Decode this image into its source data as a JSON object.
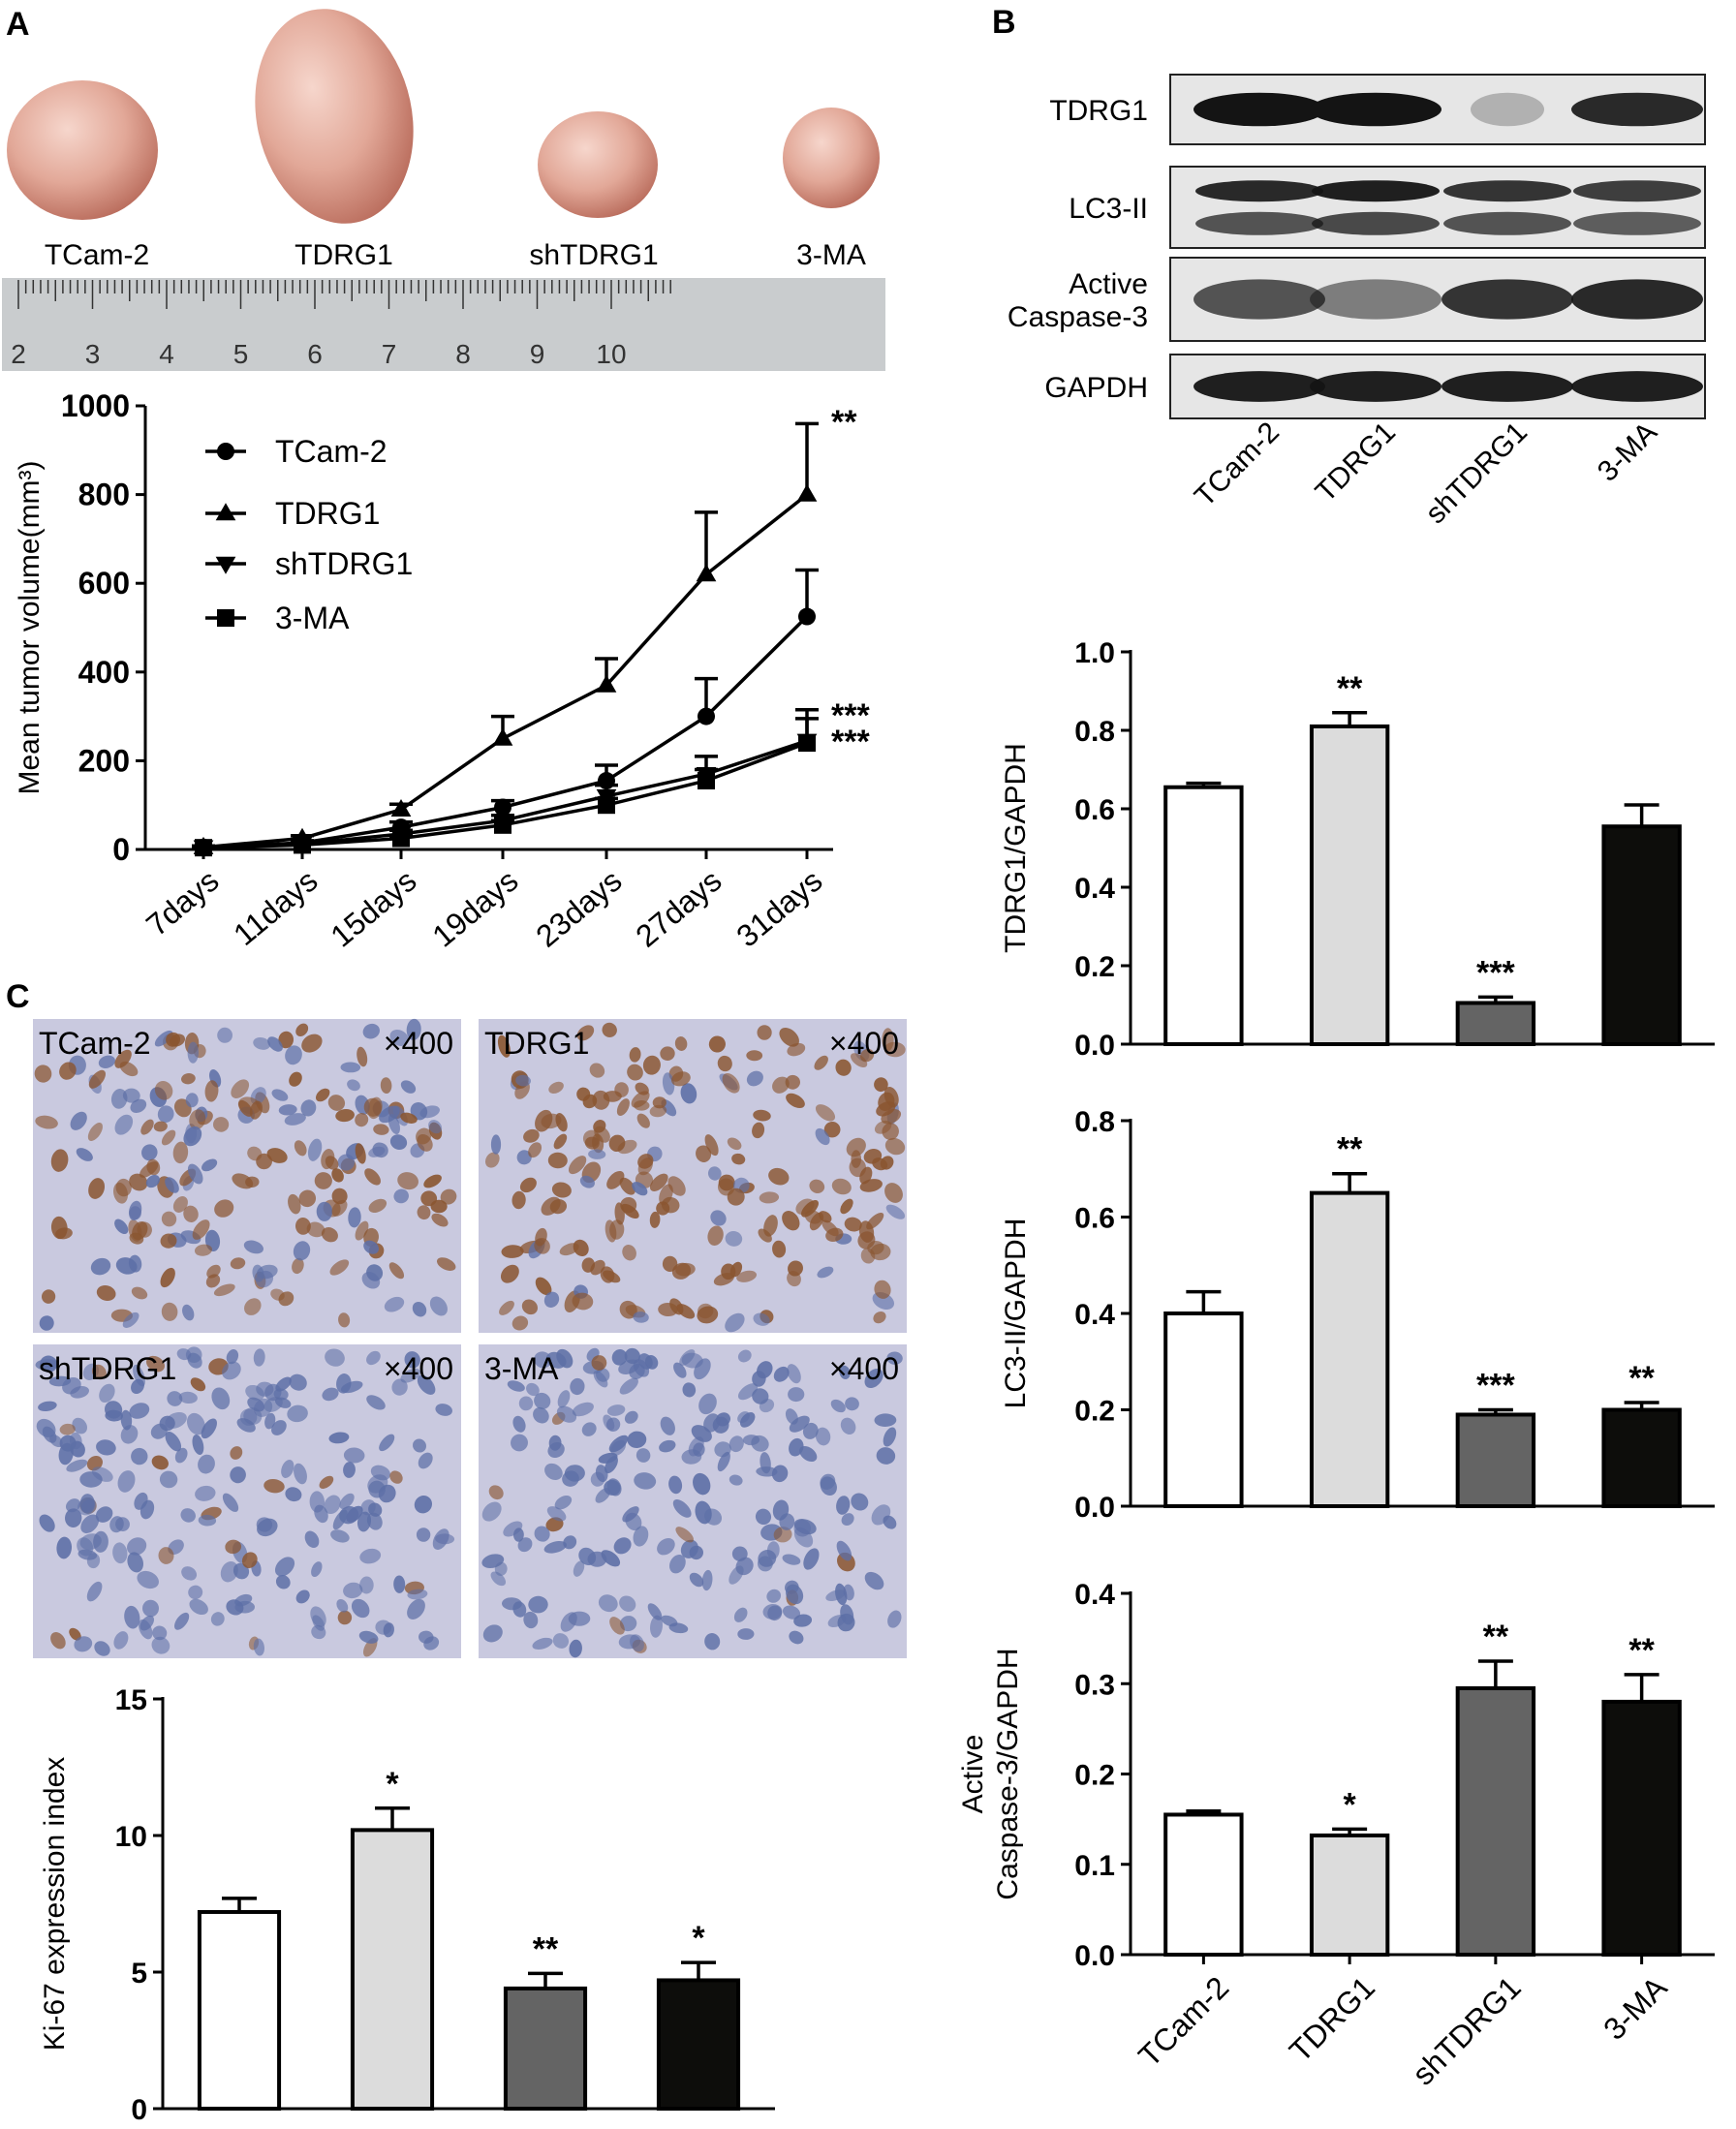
{
  "colors": {
    "tcam2": "#ffffff",
    "tdrg1": "#dcdcdc",
    "shtdrg1": "#646464",
    "ma": "#0d0d0b",
    "ink": "#000000",
    "tumor": "#e3a89c",
    "ruler": "#c9ccce",
    "stain_bg": "#c9c9df",
    "stain_brown": "#8a5530",
    "stain_blue": "#5d6fa6",
    "blot_band": "#141414",
    "blot_bg": "#e6e6e6"
  },
  "panels": {
    "a": "A",
    "b": "B",
    "c": "C"
  },
  "photo": {
    "labels": [
      "TCam-2",
      "TDRG1",
      "shTDRG1",
      "3-MA"
    ],
    "ruler_numbers": [
      "2",
      "3",
      "4",
      "5",
      "6",
      "7",
      "8",
      "9",
      "10"
    ]
  },
  "blot": {
    "row_labels": [
      {
        "key": "tdrg1",
        "lines": [
          "TDRG1"
        ]
      },
      {
        "key": "lc3",
        "lines": [
          "LC3-II"
        ]
      },
      {
        "key": "casp",
        "lines": [
          "Active",
          "Caspase-3"
        ]
      },
      {
        "key": "gapdh",
        "lines": [
          "GAPDH"
        ]
      }
    ],
    "lane_labels": [
      "TCam-2",
      "TDRG1",
      "shTDRG1",
      "3-MA"
    ]
  },
  "histology": {
    "labels": [
      "TCam-2",
      "TDRG1",
      "shTDRG1",
      "3-MA"
    ],
    "magnification": "×400"
  },
  "chart_data": [
    {
      "id": "tumor-volume",
      "type": "line",
      "ylabel": "Mean tumor volume(mm³)",
      "ylim": [
        0,
        1000
      ],
      "yticks": [
        0,
        200,
        400,
        600,
        800,
        1000
      ],
      "categories": [
        "7days",
        "11days",
        "15days",
        "19days",
        "23days",
        "27days",
        "31days"
      ],
      "legend": "top-left",
      "series": [
        {
          "name": "TCam-2",
          "marker": "circle",
          "values": [
            5,
            15,
            50,
            95,
            155,
            300,
            525
          ],
          "errors": [
            3,
            5,
            12,
            15,
            35,
            85,
            105
          ]
        },
        {
          "name": "TDRG1",
          "marker": "triangle-up",
          "values": [
            5,
            25,
            90,
            250,
            370,
            620,
            800
          ],
          "errors": [
            3,
            6,
            12,
            50,
            60,
            140,
            160
          ]
        },
        {
          "name": "shTDRG1",
          "marker": "triangle-down",
          "values": [
            5,
            12,
            35,
            65,
            120,
            170,
            245
          ],
          "errors": [
            2,
            4,
            8,
            12,
            25,
            40,
            70
          ]
        },
        {
          "name": "3-MA",
          "marker": "square",
          "values": [
            4,
            10,
            25,
            55,
            100,
            155,
            240
          ],
          "errors": [
            2,
            3,
            6,
            10,
            15,
            25,
            55
          ]
        }
      ],
      "annotations": [
        "**",
        "***",
        "***"
      ]
    },
    {
      "id": "tdrg1-gapdh",
      "type": "bar",
      "ylabel": "TDRG1/GAPDH",
      "ylim": [
        0,
        1.0
      ],
      "yticks": [
        "0.0",
        "0.2",
        "0.4",
        "0.6",
        "0.8",
        "1.0"
      ],
      "categories": [
        "TCam-2",
        "TDRG1",
        "shTDRG1",
        "3-MA"
      ],
      "values": [
        0.655,
        0.81,
        0.105,
        0.555
      ],
      "errors": [
        0.01,
        0.035,
        0.015,
        0.055
      ],
      "significance": [
        "",
        "**",
        "***",
        ""
      ]
    },
    {
      "id": "lc3-gapdh",
      "type": "bar",
      "ylabel": "LC3-II/GAPDH",
      "ylim": [
        0,
        0.8
      ],
      "yticks": [
        "0.0",
        "0.2",
        "0.4",
        "0.6",
        "0.8"
      ],
      "categories": [
        "TCam-2",
        "TDRG1",
        "shTDRG1",
        "3-MA"
      ],
      "values": [
        0.4,
        0.65,
        0.19,
        0.2
      ],
      "errors": [
        0.045,
        0.04,
        0.01,
        0.015
      ],
      "significance": [
        "",
        "**",
        "***",
        "**"
      ]
    },
    {
      "id": "casp-gapdh",
      "type": "bar",
      "ylabel": [
        "Active",
        "Caspase-3/GAPDH"
      ],
      "ylim": [
        0,
        0.4
      ],
      "yticks": [
        "0.0",
        "0.1",
        "0.2",
        "0.3",
        "0.4"
      ],
      "categories": [
        "TCam-2",
        "TDRG1",
        "shTDRG1",
        "3-MA"
      ],
      "values": [
        0.155,
        0.132,
        0.295,
        0.28
      ],
      "errors": [
        0.004,
        0.007,
        0.03,
        0.03
      ],
      "significance": [
        "",
        "*",
        "**",
        "**"
      ]
    },
    {
      "id": "ki67",
      "type": "bar",
      "ylabel": "Ki-67 expression index",
      "ylim": [
        0,
        15
      ],
      "yticks": [
        "0",
        "5",
        "10",
        "15"
      ],
      "categories": [
        "TCam-2",
        "TDRG1",
        "shTDRG1",
        "3-MA"
      ],
      "values": [
        7.2,
        10.2,
        4.4,
        4.7
      ],
      "errors": [
        0.5,
        0.8,
        0.55,
        0.65
      ],
      "significance": [
        "",
        "*",
        "**",
        "*"
      ]
    }
  ]
}
